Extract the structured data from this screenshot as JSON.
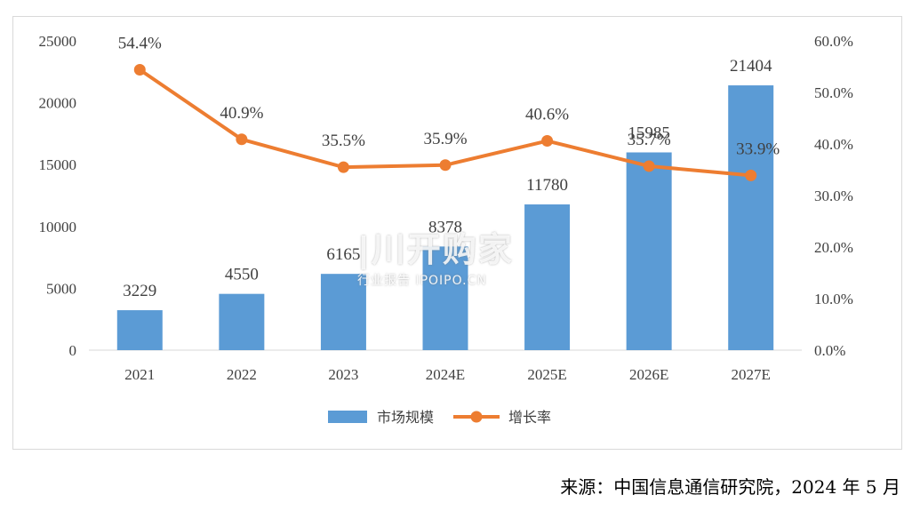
{
  "chart_data": {
    "type": "bar",
    "categories": [
      "2021",
      "2022",
      "2023",
      "2024E",
      "2025E",
      "2026E",
      "2027E"
    ],
    "series": [
      {
        "name": "市场规模",
        "type": "bar",
        "axis": "left",
        "values": [
          3229,
          4550,
          6165,
          8378,
          11780,
          15985,
          21404
        ],
        "labels": [
          "3229",
          "4550",
          "6165",
          "8378",
          "11780",
          "15985",
          "21404"
        ]
      },
      {
        "name": "增长率",
        "type": "line",
        "axis": "right",
        "values": [
          54.4,
          40.9,
          35.5,
          35.9,
          40.6,
          35.7,
          33.9
        ],
        "labels": [
          "54.4%",
          "40.9%",
          "35.5%",
          "35.9%",
          "40.6%",
          "35.7%",
          "33.9%"
        ]
      }
    ],
    "y_left": {
      "min": 0,
      "max": 25000,
      "ticks": [
        "0",
        "5000",
        "10000",
        "15000",
        "20000",
        "25000"
      ]
    },
    "y_right": {
      "min": 0,
      "max": 60,
      "ticks": [
        "0.0%",
        "10.0%",
        "20.0%",
        "30.0%",
        "40.0%",
        "50.0%",
        "60.0%"
      ]
    },
    "grid": false,
    "legend_position": "bottom",
    "colors": {
      "bar": "#5b9bd5",
      "line": "#ed7d31",
      "text": "#404040"
    }
  },
  "source_note": "来源：中国信息通信研究院，2024 年 5 月",
  "watermark": {
    "brand": "|川开购家",
    "sub": "行业报告 IPOIPO.CN"
  }
}
